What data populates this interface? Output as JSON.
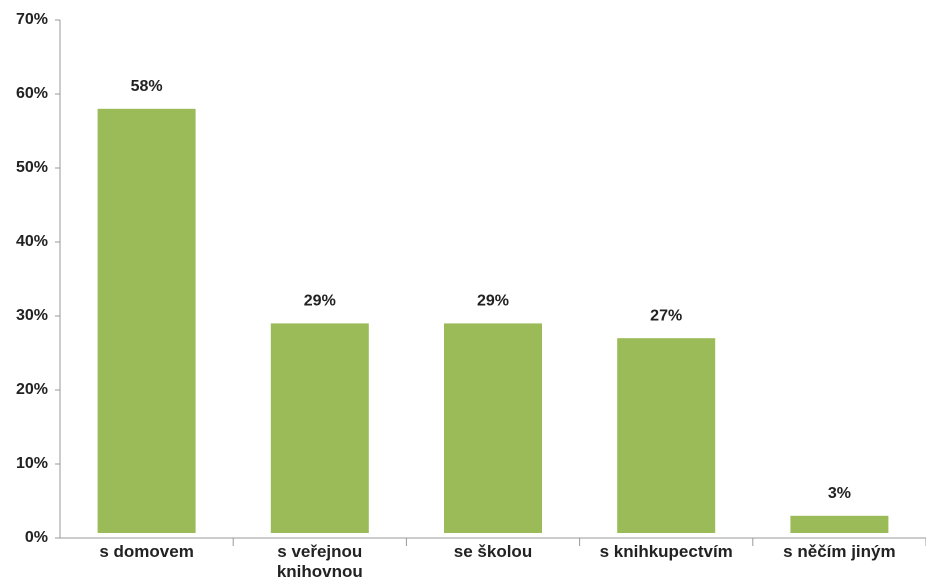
{
  "chart_data": {
    "type": "bar",
    "categories": [
      "s domovem",
      "s veřejnou knihovnou",
      "se školou",
      "s knihkupectvím",
      "s něčím jiným"
    ],
    "values": [
      58,
      29,
      29,
      27,
      3
    ],
    "value_labels": [
      "58%",
      "29%",
      "29%",
      "27%",
      "3%"
    ],
    "color": "#9bbb59",
    "ylim": [
      0,
      70
    ],
    "yticks": [
      {
        "value": 0,
        "label": "0%"
      },
      {
        "value": 10,
        "label": "10%"
      },
      {
        "value": 20,
        "label": "20%"
      },
      {
        "value": 30,
        "label": "30%"
      },
      {
        "value": 40,
        "label": "40%"
      },
      {
        "value": 50,
        "label": "50%"
      },
      {
        "value": 60,
        "label": "60%"
      },
      {
        "value": 70,
        "label": "70%"
      }
    ],
    "grid": false
  }
}
